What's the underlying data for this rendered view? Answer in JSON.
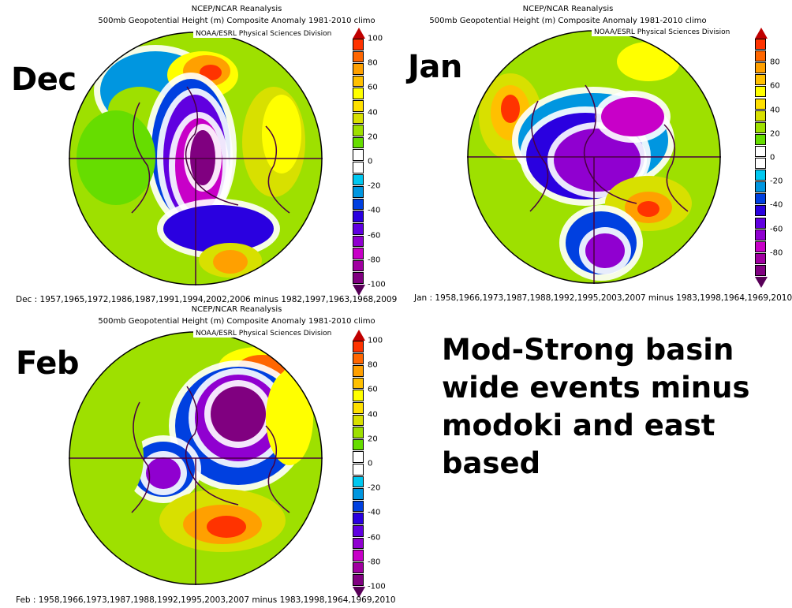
{
  "panels": [
    {
      "month": "Dec",
      "title1": "NCEP/NCAR Reanalysis",
      "title2": "500mb Geopotential Height (m) Composite Anomaly 1981-2010 climo",
      "credit": "NOAA/ESRL Physical Sciences Division",
      "footer": "Dec : 1957,1965,1972,1986,1987,1991,1994,2002,2006 minus 1982,1997,1963,1968,2009",
      "colorbar_labels": [
        "100",
        "80",
        "60",
        "40",
        "20",
        "0",
        "-20",
        "-40",
        "-60",
        "-80",
        "-100"
      ]
    },
    {
      "month": "Jan",
      "title1": "NCEP/NCAR Reanalysis",
      "title2": "500mb Geopotential Height (m) Composite Anomaly 1981-2010 climo",
      "credit": "NOAA/ESRL Physical Sciences Division",
      "footer": "Jan : 1958,1966,1973,1987,1988,1992,1995,2003,2007 minus 1983,1998,1964,1969,2010",
      "colorbar_labels": [
        "80",
        "60",
        "40",
        "20",
        "0",
        "-20",
        "-40",
        "-60",
        "-80"
      ]
    },
    {
      "month": "Feb",
      "title1": "NCEP/NCAR Reanalysis",
      "title2": "500mb Geopotential Height (m) Composite Anomaly 1981-2010 climo",
      "credit": "NOAA/ESRL Physical Sciences Division",
      "footer": "Feb : 1958,1966,1973,1987,1988,1992,1995,2003,2007 minus 1983,1998,1964,1969,2010",
      "colorbar_labels": [
        "100",
        "80",
        "60",
        "40",
        "20",
        "0",
        "-20",
        "-40",
        "-60",
        "-80",
        "-100"
      ]
    }
  ],
  "annotation": [
    "Mod-Strong basin",
    "wide events minus",
    "modoki and east",
    "based"
  ],
  "colorscale": [
    "#c00000",
    "#ff3300",
    "#ff6600",
    "#ffa000",
    "#ffc000",
    "#ffff00",
    "#ffe000",
    "#d8e000",
    "#9ee000",
    "#66dd00",
    "#ffffff",
    "#ffffff",
    "#00c8f0",
    "#0096e0",
    "#0040e0",
    "#2a00e0",
    "#6000e0",
    "#9000d0",
    "#c800c8",
    "#a000a0",
    "#800080",
    "#580058"
  ]
}
